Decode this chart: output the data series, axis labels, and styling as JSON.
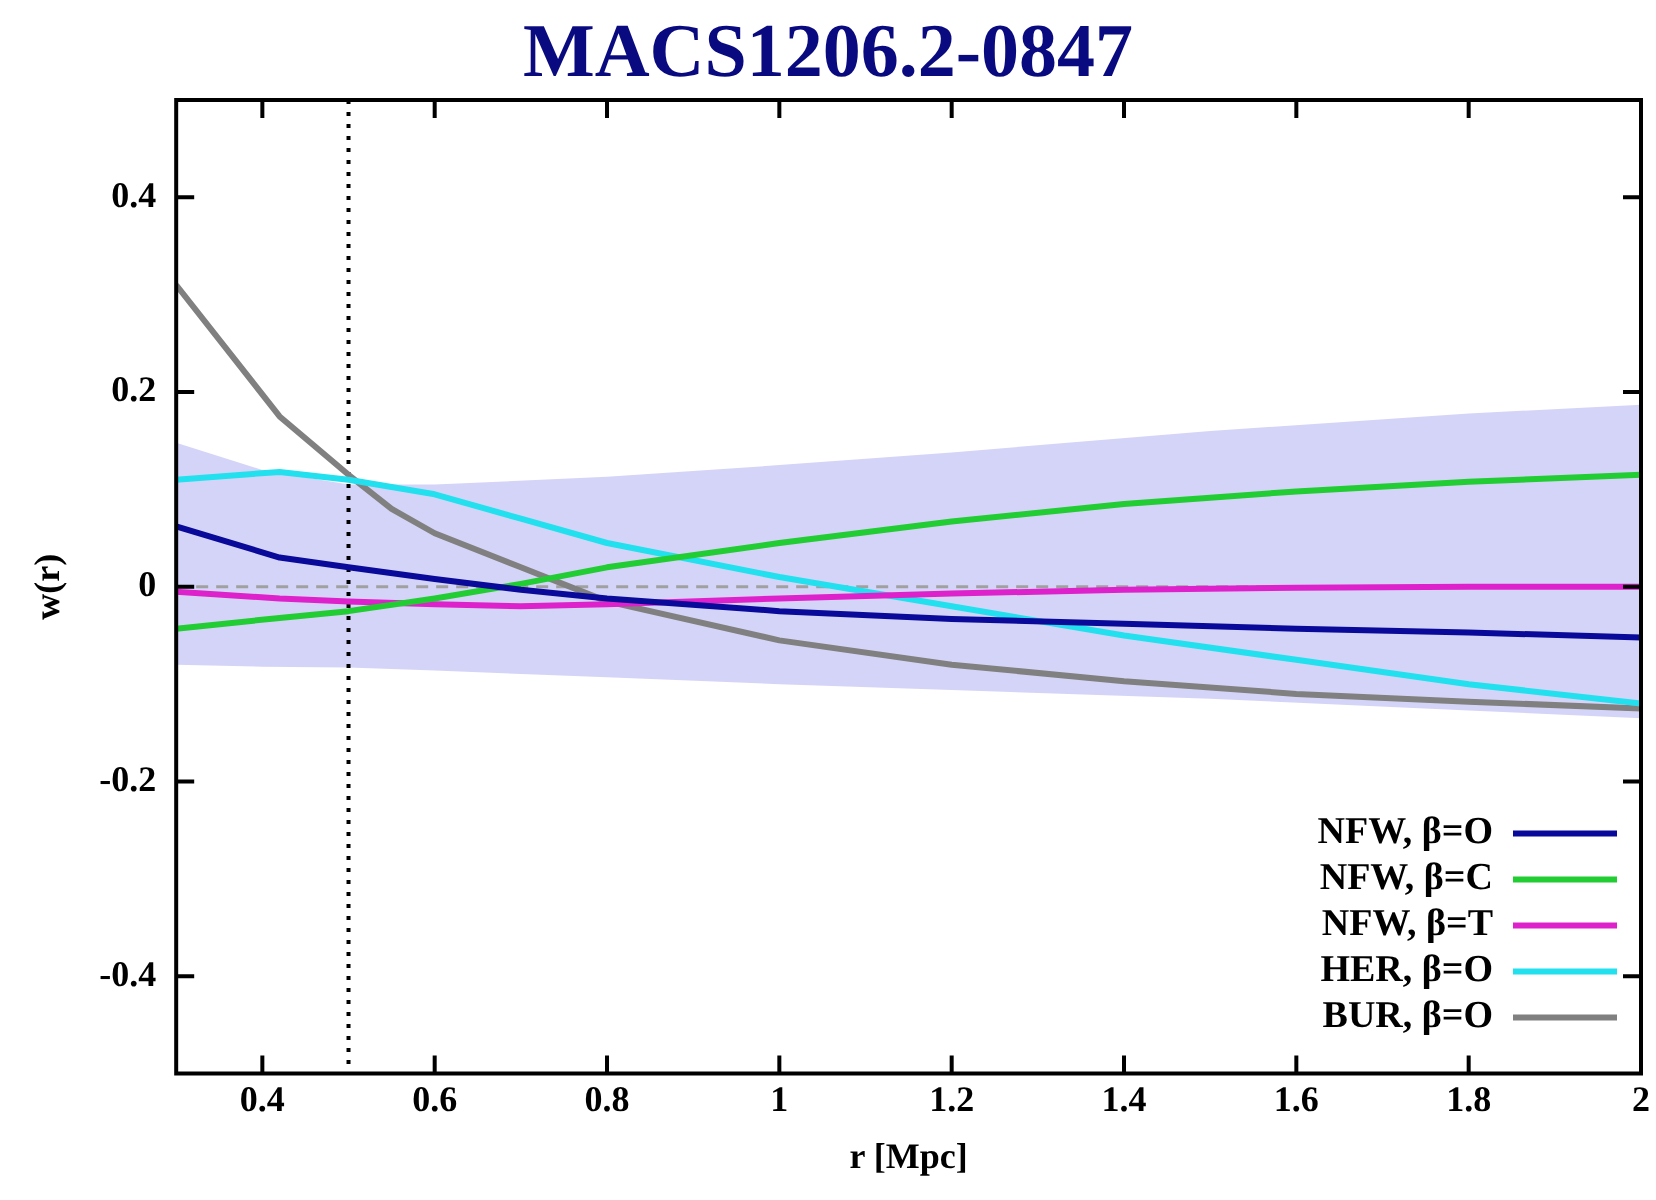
{
  "chart_data": {
    "type": "line",
    "title": "MACS1206.2-0847",
    "xlabel": "r [Mpc]",
    "ylabel": "w(r)",
    "xlim": [
      0.3,
      2
    ],
    "xticks": [
      0.4,
      0.6,
      0.8,
      1,
      1.2,
      1.4,
      1.6,
      1.8,
      2
    ],
    "ylim": [
      -0.5,
      0.5
    ],
    "yticks": [
      -0.4,
      -0.2,
      0,
      0.2,
      0.4
    ],
    "grid": false,
    "legend": "bottom right",
    "line_style": "solid",
    "ref_lines": [
      {
        "axis": "y",
        "value": 0,
        "color": "#a0a0a0",
        "line_style": "dashed"
      },
      {
        "axis": "x",
        "value": 0.5,
        "color": "#000000",
        "line_style": "dotted"
      }
    ],
    "series": [
      {
        "type": "line",
        "color": "#d4d4f8",
        "x": [
          0.3,
          0.4,
          0.5,
          0.6,
          0.8,
          1,
          1.2,
          1.5,
          1.8,
          2
        ],
        "values": [
          null,
          null,
          null,
          null,
          null,
          null,
          null,
          null,
          null,
          null
        ],
        "lower": [
          -0.08,
          -0.082,
          -0.083,
          -0.086,
          -0.093,
          -0.1,
          -0.106,
          -0.115,
          -0.127,
          -0.135
        ],
        "upper": [
          0.148,
          0.12,
          0.105,
          0.105,
          0.113,
          0.125,
          0.138,
          0.16,
          0.178,
          0.187
        ]
      },
      {
        "name": "NFW, β=O",
        "color": "#0a0a9a",
        "x": [
          0.3,
          0.42,
          0.5,
          0.6,
          0.7,
          0.8,
          1,
          1.2,
          1.4,
          1.6,
          1.8,
          2
        ],
        "values": [
          0.062,
          0.03,
          0.02,
          0.008,
          -0.003,
          -0.012,
          -0.025,
          -0.033,
          -0.038,
          -0.043,
          -0.047,
          -0.052
        ]
      },
      {
        "name": "NFW, β=C",
        "color": "#22cc33",
        "x": [
          0.3,
          0.42,
          0.5,
          0.6,
          0.7,
          0.8,
          1,
          1.2,
          1.4,
          1.6,
          1.8,
          2
        ],
        "values": [
          -0.043,
          -0.032,
          -0.025,
          -0.012,
          0.003,
          0.02,
          0.045,
          0.067,
          0.085,
          0.098,
          0.108,
          0.115
        ]
      },
      {
        "name": "NFW, β=T",
        "color": "#dd22cc",
        "x": [
          0.3,
          0.42,
          0.5,
          0.6,
          0.7,
          0.8,
          1,
          1.2,
          1.4,
          1.6,
          1.8,
          2
        ],
        "values": [
          -0.005,
          -0.012,
          -0.015,
          -0.018,
          -0.02,
          -0.018,
          -0.012,
          -0.007,
          -0.003,
          -0.001,
          0,
          0
        ]
      },
      {
        "name": "HER, β=O",
        "color": "#22e0ee",
        "x": [
          0.3,
          0.42,
          0.5,
          0.6,
          0.7,
          0.8,
          1,
          1.2,
          1.4,
          1.6,
          1.8,
          2
        ],
        "values": [
          0.11,
          0.118,
          0.11,
          0.095,
          0.07,
          0.045,
          0.01,
          -0.02,
          -0.05,
          -0.075,
          -0.1,
          -0.12
        ]
      },
      {
        "name": "BUR, β=O",
        "color": "#808080",
        "x": [
          0.3,
          0.42,
          0.5,
          0.55,
          0.6,
          0.7,
          0.8,
          1,
          1.2,
          1.4,
          1.6,
          1.8,
          2
        ],
        "values": [
          0.31,
          0.175,
          0.115,
          0.08,
          0.055,
          0.02,
          -0.015,
          -0.055,
          -0.08,
          -0.097,
          -0.11,
          -0.118,
          -0.125
        ]
      }
    ]
  }
}
